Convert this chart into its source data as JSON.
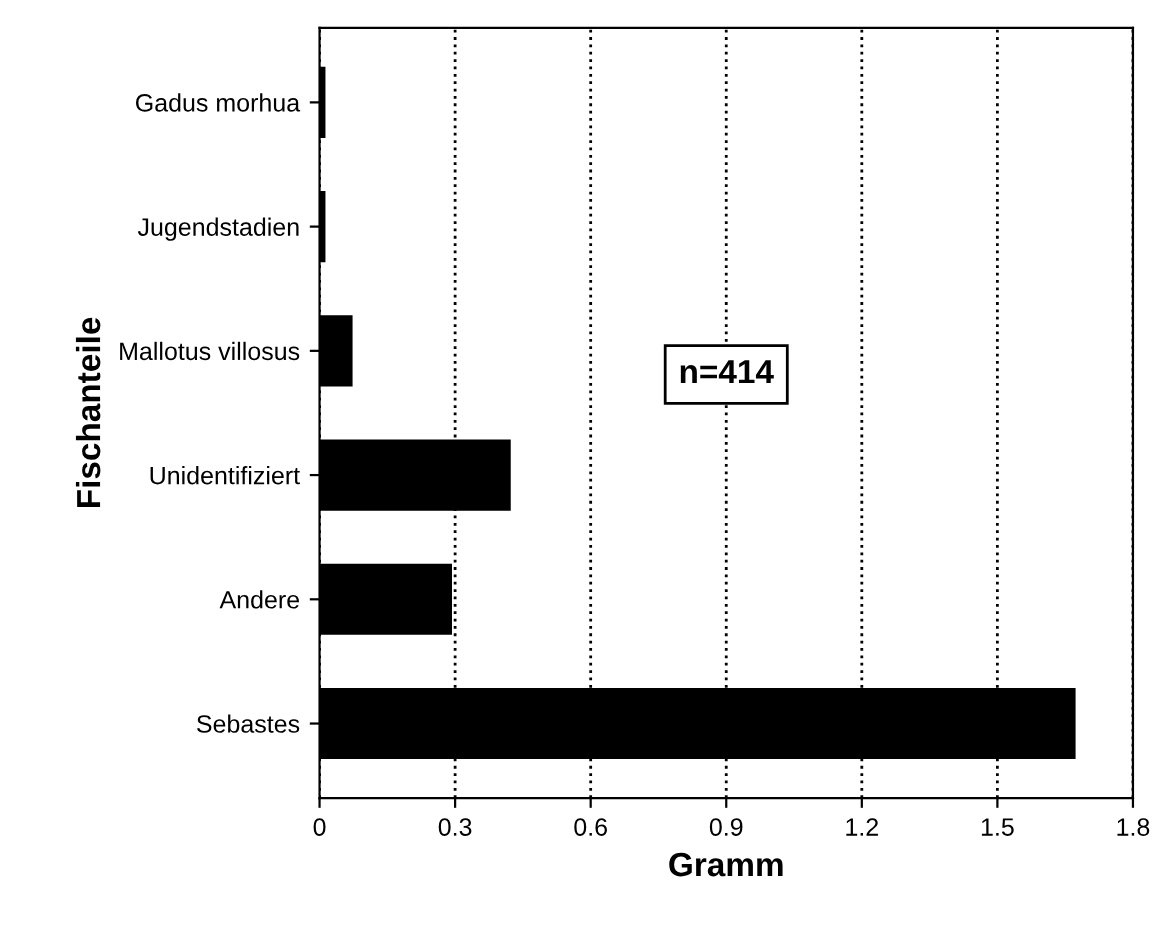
{
  "chart_data": {
    "type": "bar",
    "orientation": "horizontal",
    "categories": [
      "Gadus morhua",
      "Jugendstadien",
      "Mallotus villosus",
      "Unidentifiziert",
      "Andere",
      "Sebastes"
    ],
    "values": [
      0.01,
      0.01,
      0.07,
      0.42,
      0.29,
      1.67
    ],
    "color": "#000000",
    "xlabel": "Gramm",
    "ylabel": "Fischanteile",
    "xlim": [
      0,
      1.8
    ],
    "xticks": [
      0,
      0.3,
      0.6,
      0.9,
      1.2,
      1.5,
      1.8
    ],
    "grid": "x",
    "annotations": [
      "n=414"
    ]
  }
}
